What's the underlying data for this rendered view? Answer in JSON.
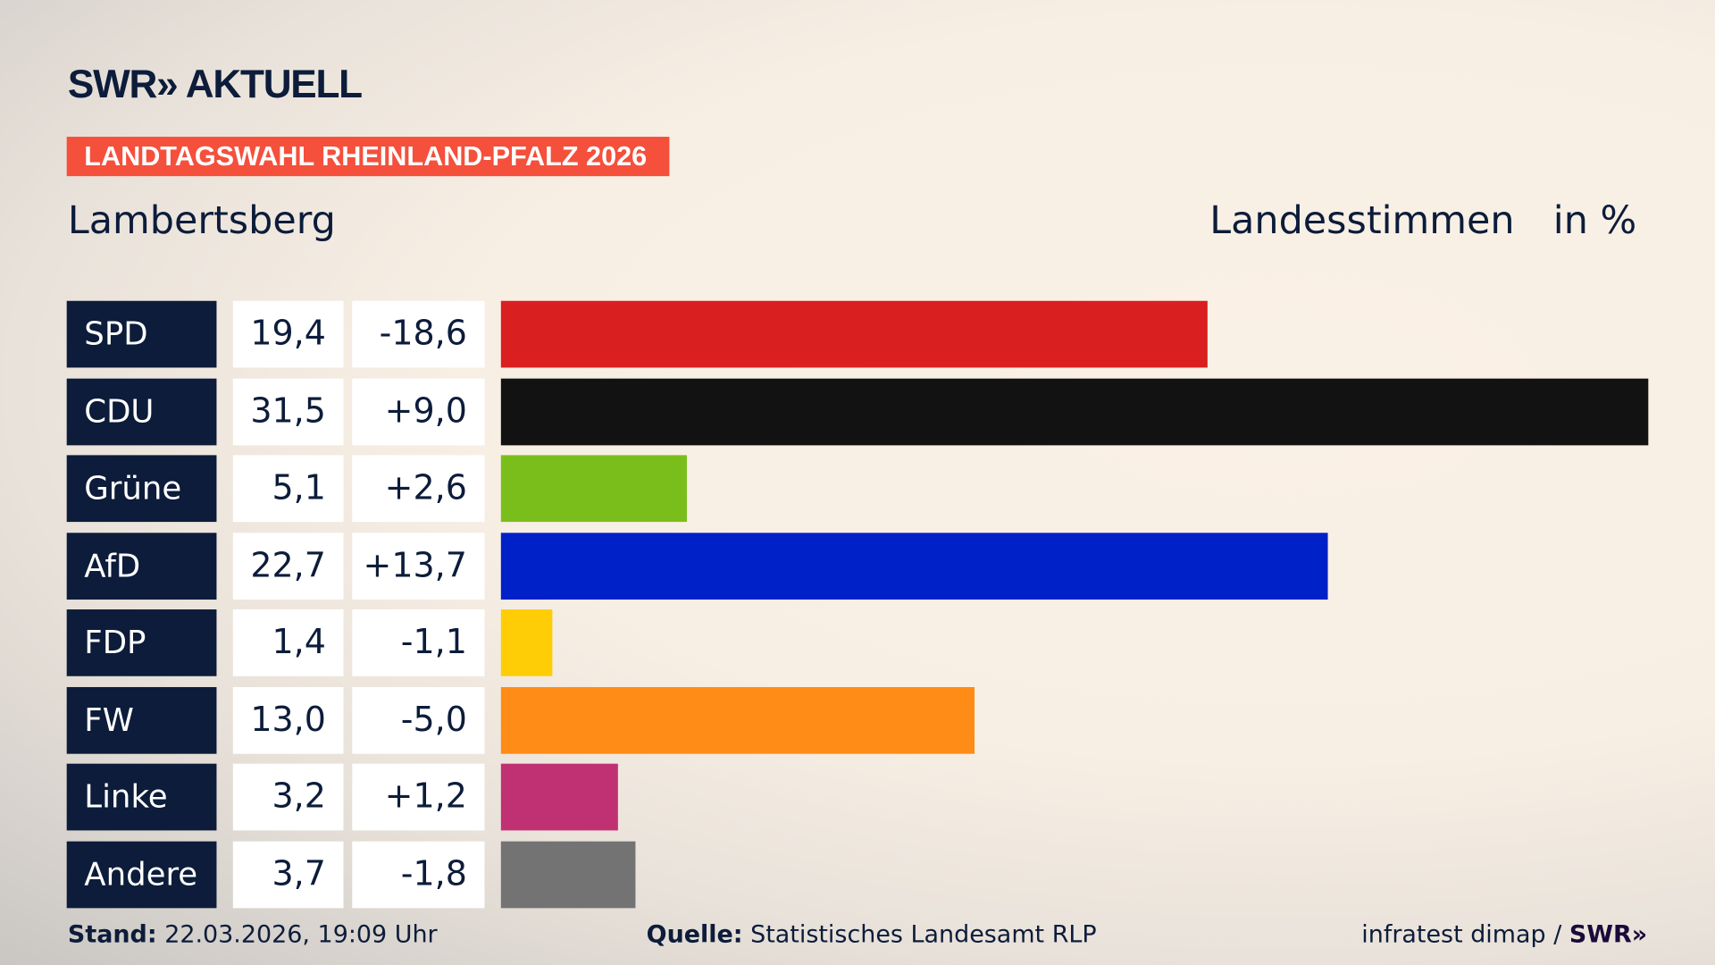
{
  "header": {
    "logo": "SWR» AKTUELL",
    "banner": "LANDTAGSWAHL RHEINLAND-PFALZ 2026",
    "region": "Lambertsberg",
    "metric": "Landesstimmen",
    "unit": "in %"
  },
  "chart_data": {
    "type": "bar",
    "orientation": "horizontal",
    "categories": [
      "SPD",
      "CDU",
      "Grüne",
      "AfD",
      "FDP",
      "FW",
      "Linke",
      "Andere"
    ],
    "values": [
      19.4,
      31.5,
      5.1,
      22.7,
      1.4,
      13.0,
      3.2,
      3.7
    ],
    "value_labels": [
      "19,4",
      "31,5",
      "5,1",
      "22,7",
      "1,4",
      "13,0",
      "3,2",
      "3,7"
    ],
    "changes": [
      "-18,6",
      "+9,0",
      "+2,6",
      "+13,7",
      "-1,1",
      "-5,0",
      "+1,2",
      "-1,8"
    ],
    "colors": [
      "#d91f20",
      "#121212",
      "#7abe1c",
      "#0020c8",
      "#ffcd05",
      "#ff8c17",
      "#bf3173",
      "#737373"
    ],
    "xlim": [
      0,
      31.5
    ]
  },
  "footer": {
    "stand_label": "Stand:",
    "stand_value": "22.03.2026, 19:09 Uhr",
    "source_label": "Quelle:",
    "source_value": "Statistisches Landesamt RLP",
    "credit": "infratest dimap / ",
    "credit_logo": "SWR»"
  }
}
